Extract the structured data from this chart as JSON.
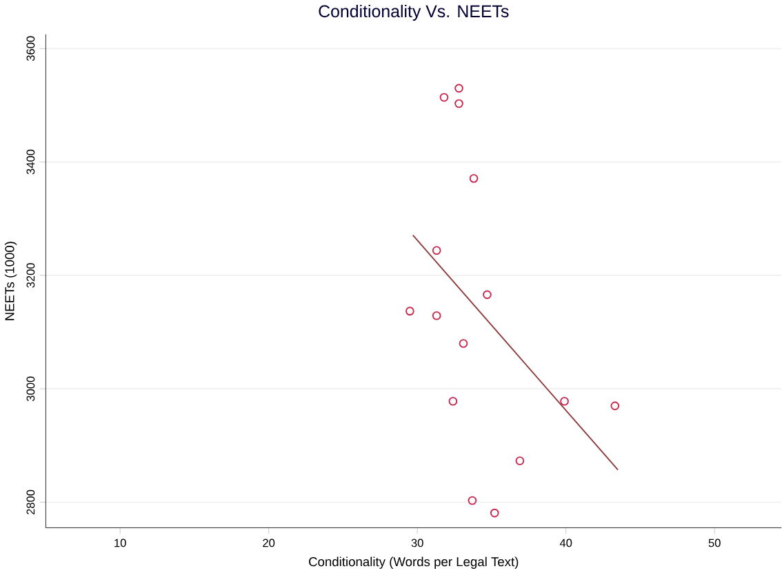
{
  "chart_data": {
    "type": "scatter",
    "title": "Conditionality Vs. NEETs",
    "xlabel": "Conditionality (Words per Legal Text)",
    "ylabel": "NEETs (1000)",
    "xlim": [
      5,
      54.5
    ],
    "ylim": [
      2755,
      3625
    ],
    "xticks": [
      10,
      20,
      30,
      40,
      50
    ],
    "yticks": [
      2800,
      3000,
      3200,
      3400,
      3600
    ],
    "grid": "y",
    "marker": "circle",
    "series": [
      {
        "color": "#c8264a",
        "x": [
          32.8,
          31.8,
          32.8,
          33.8,
          31.3,
          34.7,
          29.5,
          31.3,
          33.1,
          32.4,
          39.9,
          43.3,
          36.9,
          33.7,
          35.2
        ],
        "values": [
          3530,
          3514,
          3503,
          3371,
          3244,
          3166,
          3137,
          3129,
          3080,
          2978,
          2978,
          2970,
          2873,
          2803,
          2781
        ]
      },
      {
        "type": "line",
        "marker": "none",
        "color": "#8b3a3a",
        "x": [
          29.7,
          43.5
        ],
        "values": [
          3271,
          2857
        ]
      }
    ]
  }
}
